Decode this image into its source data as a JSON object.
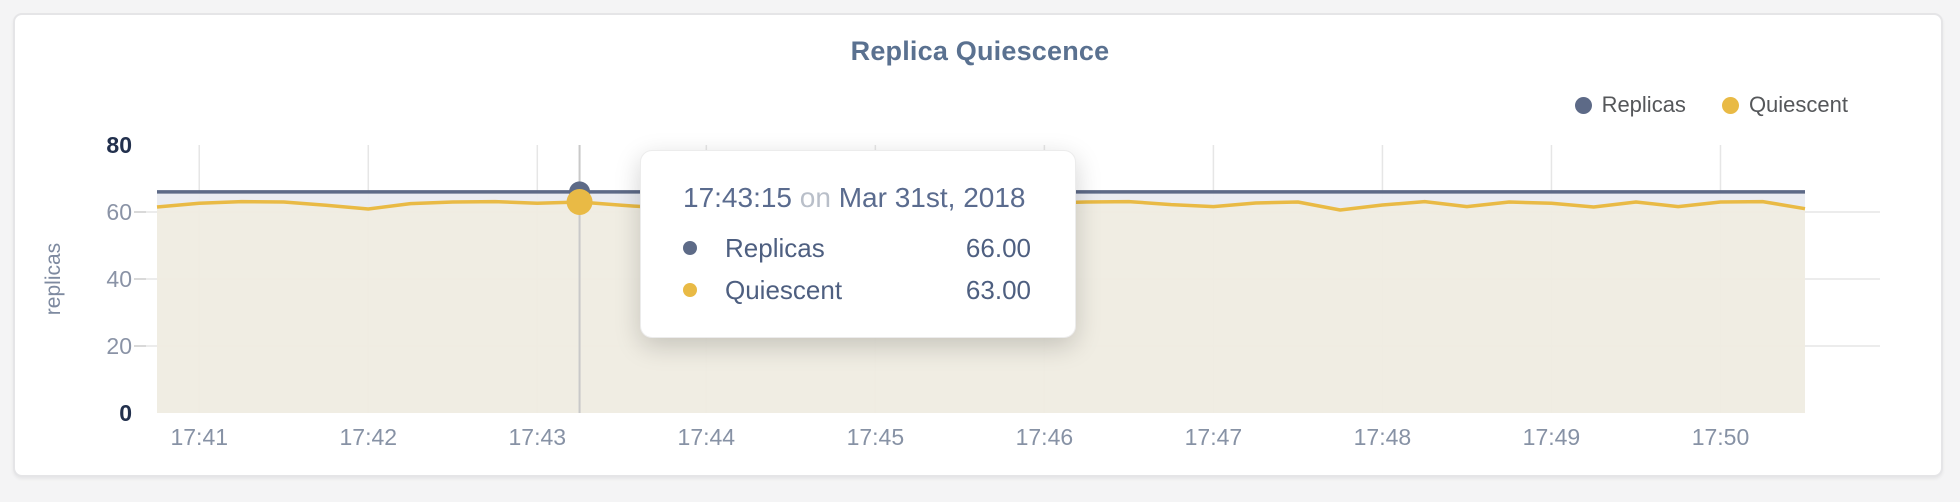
{
  "page": {
    "background": "#f4f4f5",
    "card_background": "#ffffff"
  },
  "header": {
    "title": "Replica Quiescence",
    "title_color": "#5a7190"
  },
  "legend": {
    "position": "top-right",
    "items": [
      {
        "label": "Replicas",
        "color": "#5d6a87"
      },
      {
        "label": "Quiescent",
        "color": "#e9ba45"
      }
    ]
  },
  "tooltip": {
    "time": "17:43:15",
    "preposition": "on",
    "date": "Mar 31st, 2018",
    "rows": [
      {
        "label": "Replicas",
        "value": "66.00",
        "color": "#5d6a87"
      },
      {
        "label": "Quiescent",
        "value": "63.00",
        "color": "#e9ba45"
      }
    ]
  },
  "chart_data": {
    "type": "area",
    "title": "Replica Quiescence",
    "xlabel": "",
    "ylabel": "replicas",
    "ylim": [
      0,
      80
    ],
    "y_ticks": [
      0,
      20,
      40,
      60,
      80
    ],
    "x_ticks": [
      "17:41",
      "17:42",
      "17:43",
      "17:44",
      "17:45",
      "17:46",
      "17:47",
      "17:48",
      "17:49",
      "17:50"
    ],
    "grid": true,
    "legend_position": "top-right",
    "hover_index": 10,
    "hover_time": "17:43:15",
    "x": [
      "17:40:45",
      "17:41:00",
      "17:41:15",
      "17:41:30",
      "17:41:45",
      "17:42:00",
      "17:42:15",
      "17:42:30",
      "17:42:45",
      "17:43:00",
      "17:43:15",
      "17:43:30",
      "17:43:45",
      "17:44:00",
      "17:44:15",
      "17:44:30",
      "17:44:45",
      "17:45:00",
      "17:45:15",
      "17:45:30",
      "17:45:45",
      "17:46:00",
      "17:46:15",
      "17:46:30",
      "17:46:45",
      "17:47:00",
      "17:47:15",
      "17:47:30",
      "17:47:45",
      "17:48:00",
      "17:48:15",
      "17:48:30",
      "17:48:45",
      "17:49:00",
      "17:49:15",
      "17:49:30",
      "17:49:45",
      "17:50:00",
      "17:50:15",
      "17:50:30"
    ],
    "series": [
      {
        "name": "Replicas",
        "color": "#5d6a87",
        "fill": "#e9ebf0",
        "values": [
          66,
          66,
          66,
          66,
          66,
          66,
          66,
          66,
          66,
          66,
          66,
          66,
          66,
          66,
          66,
          66,
          66,
          66,
          66,
          66,
          66,
          66,
          66,
          66,
          66,
          66,
          66,
          66,
          66,
          66,
          66,
          66,
          66,
          66,
          66,
          66,
          66,
          66,
          66,
          66
        ]
      },
      {
        "name": "Quiescent",
        "color": "#e9ba45",
        "fill": "#efece2",
        "values": [
          61.5,
          62.6,
          63.1,
          63.0,
          62.0,
          60.9,
          62.5,
          63.0,
          63.1,
          62.6,
          63.0,
          62.0,
          61.2,
          62.4,
          63.0,
          62.1,
          61.6,
          62.6,
          63.0,
          63.1,
          62.1,
          62.7,
          63.0,
          63.1,
          62.2,
          61.6,
          62.7,
          63.0,
          60.6,
          62.1,
          63.1,
          61.6,
          63.0,
          62.6,
          61.5,
          63.0,
          61.6,
          63.0,
          63.1,
          61.0
        ]
      }
    ]
  }
}
